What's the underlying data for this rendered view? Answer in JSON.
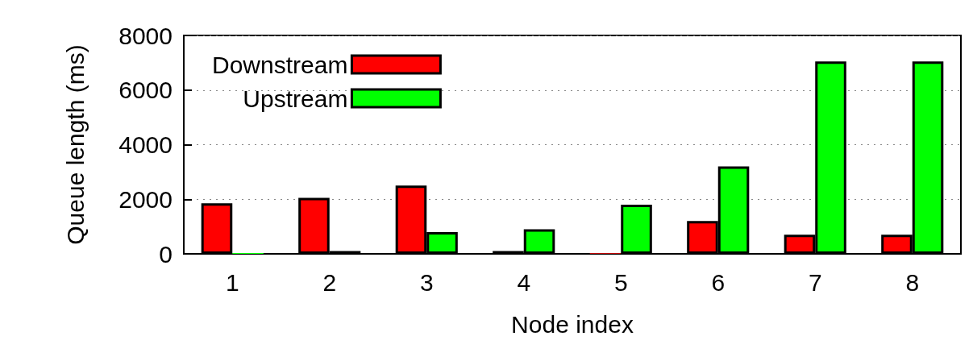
{
  "chart_data": {
    "type": "bar",
    "xlabel": "Node index",
    "ylabel": "Queue length (ms)",
    "categories": [
      "1",
      "2",
      "3",
      "4",
      "5",
      "6",
      "7",
      "8"
    ],
    "series": [
      {
        "name": "Downstream",
        "color": "#ff0000",
        "values": [
          1850,
          2050,
          2500,
          100,
          20,
          1200,
          700,
          700
        ]
      },
      {
        "name": "Upstream",
        "color": "#00ff00",
        "values": [
          30,
          100,
          800,
          900,
          1800,
          3200,
          7050,
          7050
        ]
      }
    ],
    "ylim": [
      0,
      8000
    ],
    "yticks": [
      0,
      2000,
      4000,
      6000,
      8000
    ],
    "grid": "y",
    "legend": "top left"
  }
}
